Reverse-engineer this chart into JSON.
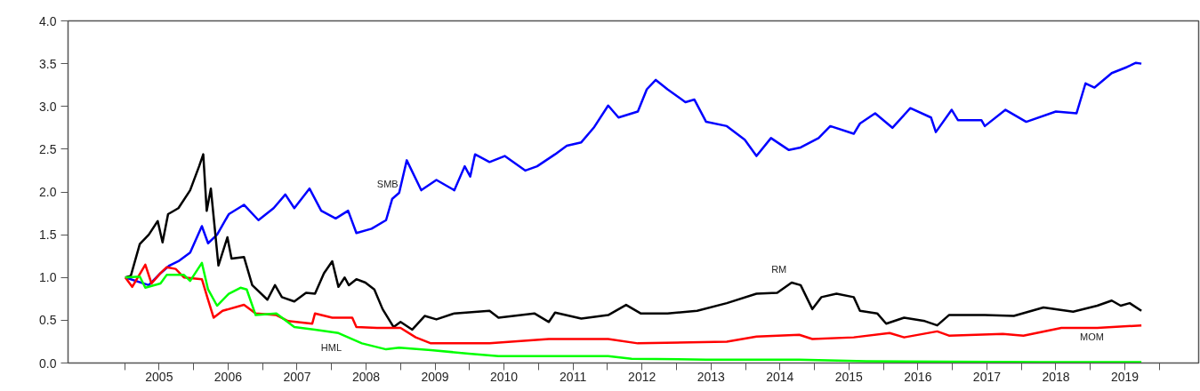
{
  "chart_data": {
    "type": "line",
    "xlim": [
      2004.18,
      2020.57
    ],
    "ylim": [
      0,
      4.0
    ],
    "yticks": [
      {
        "value": 0,
        "label": "0.0"
      },
      0.5,
      {
        "value": 1,
        "label": "1.0"
      },
      1.5,
      {
        "value": 2,
        "label": "2.0"
      },
      2.5,
      {
        "value": 3,
        "label": "3.0"
      },
      3.5,
      {
        "value": 4,
        "label": "4.0"
      }
    ],
    "xticks": [
      {
        "value": 2005,
        "label": null
      },
      {
        "value": 2005.5,
        "label": "2005"
      },
      {
        "value": 2006,
        "label": null
      },
      {
        "value": 2006.5,
        "label": "2006"
      },
      {
        "value": 2007,
        "label": null
      },
      {
        "value": 2007.5,
        "label": "2007"
      },
      {
        "value": 2008,
        "label": null
      },
      {
        "value": 2008.5,
        "label": "2008"
      },
      {
        "value": 2009,
        "label": null
      },
      {
        "value": 2009.5,
        "label": "2009"
      },
      {
        "value": 2010,
        "label": null
      },
      {
        "value": 2010.5,
        "label": "2010"
      },
      {
        "value": 2011,
        "label": null
      },
      {
        "value": 2011.5,
        "label": "2011"
      },
      {
        "value": 2012,
        "label": null
      },
      {
        "value": 2012.5,
        "label": "2012"
      },
      {
        "value": 2013,
        "label": null
      },
      {
        "value": 2013.5,
        "label": "2013"
      },
      {
        "value": 2014,
        "label": null
      },
      {
        "value": 2014.5,
        "label": "2014"
      },
      {
        "value": 2015,
        "label": null
      },
      {
        "value": 2015.5,
        "label": "2015"
      },
      {
        "value": 2016,
        "label": null
      },
      {
        "value": 2016.5,
        "label": "2016"
      },
      {
        "value": 2017,
        "label": null
      },
      {
        "value": 2017.5,
        "label": "2017"
      },
      {
        "value": 2018,
        "label": null
      },
      {
        "value": 2018.5,
        "label": "2018"
      },
      {
        "value": 2019,
        "label": null
      },
      {
        "value": 2019.5,
        "label": "2019"
      },
      {
        "value": 2020,
        "label": null
      }
    ],
    "grid": false,
    "marker": "none",
    "line_style": "solid",
    "series": [
      {
        "color": "#0000ff",
        "x": [
          2005.01,
          2005.35,
          2005.52,
          2005.65,
          2005.78,
          2005.95,
          2006.12,
          2006.21,
          2006.34,
          2006.51,
          2006.73,
          2006.94,
          2007.16,
          2007.33,
          2007.46,
          2007.68,
          2007.85,
          2008.06,
          2008.24,
          2008.36,
          2008.58,
          2008.79,
          2008.88,
          2008.98,
          2009.09,
          2009.3,
          2009.52,
          2009.78,
          2009.93,
          2010.01,
          2010.08,
          2010.29,
          2010.51,
          2010.81,
          2010.98,
          2011.24,
          2011.41,
          2011.62,
          2011.8,
          2012.01,
          2012.16,
          2012.44,
          2012.57,
          2012.7,
          2012.87,
          2013.13,
          2013.26,
          2013.43,
          2013.73,
          2013.99,
          2014.16,
          2014.37,
          2014.63,
          2014.8,
          2015.06,
          2015.23,
          2015.57,
          2015.66,
          2015.88,
          2016.13,
          2016.39,
          2016.69,
          2016.76,
          2016.99,
          2017.08,
          2017.42,
          2017.47,
          2017.77,
          2018.07,
          2018.5,
          2018.8,
          2018.93,
          2019.06,
          2019.31,
          2019.53,
          2019.66,
          2019.74
        ],
        "values": [
          1.0,
          0.91,
          1.05,
          1.14,
          1.19,
          1.29,
          1.6,
          1.4,
          1.5,
          1.74,
          1.85,
          1.67,
          1.81,
          1.97,
          1.81,
          2.04,
          1.78,
          1.69,
          1.78,
          1.52,
          1.57,
          1.67,
          1.92,
          1.99,
          2.37,
          2.02,
          2.14,
          2.02,
          2.3,
          2.18,
          2.44,
          2.35,
          2.42,
          2.25,
          2.3,
          2.44,
          2.54,
          2.58,
          2.75,
          3.01,
          2.87,
          2.94,
          3.2,
          3.31,
          3.2,
          3.05,
          3.08,
          2.82,
          2.77,
          2.61,
          2.42,
          2.63,
          2.49,
          2.52,
          2.63,
          2.77,
          2.68,
          2.8,
          2.92,
          2.75,
          2.98,
          2.87,
          2.7,
          2.96,
          2.84,
          2.84,
          2.77,
          2.96,
          2.82,
          2.94,
          2.92,
          3.27,
          3.22,
          3.39,
          3.46,
          3.51,
          3.5
        ]
      },
      {
        "color": "#000000",
        "x": [
          2005.01,
          2005.09,
          2005.22,
          2005.35,
          2005.48,
          2005.55,
          2005.63,
          2005.78,
          2005.95,
          2006.08,
          2006.14,
          2006.19,
          2006.25,
          2006.36,
          2006.49,
          2006.55,
          2006.73,
          2006.85,
          2007.07,
          2007.18,
          2007.28,
          2007.46,
          2007.63,
          2007.76,
          2007.89,
          2008.01,
          2008.1,
          2008.19,
          2008.25,
          2008.36,
          2008.49,
          2008.62,
          2008.74,
          2008.9,
          2009.0,
          2009.17,
          2009.35,
          2009.52,
          2009.78,
          2010.29,
          2010.42,
          2010.94,
          2011.15,
          2011.24,
          2011.62,
          2012.01,
          2012.27,
          2012.48,
          2012.87,
          2013.3,
          2013.73,
          2014.16,
          2014.46,
          2014.67,
          2014.8,
          2014.97,
          2015.1,
          2015.32,
          2015.57,
          2015.66,
          2015.91,
          2016.04,
          2016.3,
          2016.6,
          2016.78,
          2016.95,
          2017.47,
          2017.89,
          2018.32,
          2018.75,
          2019.1,
          2019.31,
          2019.44,
          2019.57,
          2019.74
        ],
        "values": [
          1.0,
          1.02,
          1.39,
          1.5,
          1.66,
          1.41,
          1.74,
          1.81,
          2.02,
          2.3,
          2.44,
          1.78,
          2.04,
          1.14,
          1.47,
          1.22,
          1.24,
          0.91,
          0.74,
          0.91,
          0.77,
          0.72,
          0.82,
          0.81,
          1.05,
          1.19,
          0.89,
          1.0,
          0.91,
          0.98,
          0.94,
          0.86,
          0.63,
          0.42,
          0.48,
          0.39,
          0.55,
          0.51,
          0.58,
          0.61,
          0.53,
          0.58,
          0.48,
          0.59,
          0.52,
          0.56,
          0.68,
          0.58,
          0.58,
          0.61,
          0.7,
          0.81,
          0.82,
          0.94,
          0.91,
          0.63,
          0.77,
          0.81,
          0.77,
          0.61,
          0.58,
          0.46,
          0.53,
          0.49,
          0.44,
          0.56,
          0.56,
          0.55,
          0.65,
          0.6,
          0.67,
          0.73,
          0.67,
          0.7,
          0.61
        ]
      },
      {
        "color": "#ff0000",
        "x": [
          2005.01,
          2005.11,
          2005.3,
          2005.39,
          2005.52,
          2005.61,
          2005.74,
          2005.86,
          2006.12,
          2006.21,
          2006.29,
          2006.42,
          2006.73,
          2006.9,
          2007.2,
          2007.37,
          2007.72,
          2007.76,
          2008.01,
          2008.3,
          2008.36,
          2008.66,
          2009.0,
          2009.22,
          2009.44,
          2010.29,
          2011.15,
          2012.01,
          2012.44,
          2013.73,
          2014.16,
          2014.78,
          2014.97,
          2015.57,
          2016.09,
          2016.3,
          2016.78,
          2016.95,
          2017.73,
          2018.03,
          2018.58,
          2019.1,
          2019.74
        ],
        "values": [
          1.0,
          0.89,
          1.15,
          0.93,
          1.05,
          1.12,
          1.1,
          1.0,
          0.98,
          0.74,
          0.53,
          0.61,
          0.68,
          0.58,
          0.56,
          0.49,
          0.46,
          0.58,
          0.53,
          0.53,
          0.42,
          0.41,
          0.41,
          0.3,
          0.23,
          0.23,
          0.28,
          0.28,
          0.23,
          0.25,
          0.31,
          0.33,
          0.28,
          0.3,
          0.35,
          0.3,
          0.37,
          0.32,
          0.34,
          0.32,
          0.41,
          0.41,
          0.44
        ]
      },
      {
        "color": "#00ff00",
        "x": [
          2005.01,
          2005.22,
          2005.3,
          2005.52,
          2005.61,
          2005.86,
          2005.95,
          2006.12,
          2006.21,
          2006.34,
          2006.51,
          2006.68,
          2006.77,
          2006.9,
          2007.2,
          2007.46,
          2007.76,
          2008.1,
          2008.44,
          2008.79,
          2008.98,
          2009.44,
          2009.99,
          2010.42,
          2012.01,
          2012.35,
          2013.43,
          2014.78,
          2015.75,
          2018.28,
          2019.74
        ],
        "values": [
          1.0,
          1.01,
          0.88,
          0.93,
          1.03,
          1.03,
          0.96,
          1.17,
          0.86,
          0.67,
          0.81,
          0.88,
          0.86,
          0.56,
          0.58,
          0.42,
          0.39,
          0.35,
          0.23,
          0.16,
          0.18,
          0.15,
          0.11,
          0.08,
          0.08,
          0.05,
          0.04,
          0.04,
          0.02,
          0.01,
          0.01
        ]
      }
    ],
    "annotations": [
      {
        "text": "SMB",
        "x": 2008.98,
        "y": 1.99
      },
      {
        "text": "RM",
        "x": 2014.46,
        "y": 0.82
      },
      {
        "text": "HML",
        "x": 2008.1,
        "y": 0.35
      },
      {
        "text": "MOM",
        "x": 2019.1,
        "y": 0.41
      }
    ]
  }
}
